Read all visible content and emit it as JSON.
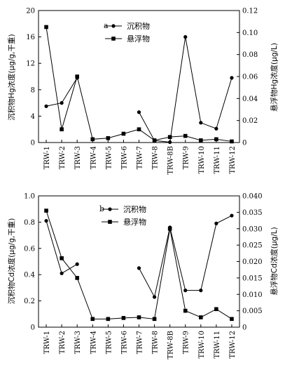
{
  "chart_data": [
    {
      "type": "line",
      "panel_label": "a",
      "categories": [
        "TRW-1",
        "TRW-2",
        "TRW-3",
        "TRW-4",
        "TRW-5",
        "TRW-6",
        "TRW-7",
        "TRW-8",
        "TRW-8B",
        "TRW-9",
        "TRW-10",
        "TRW-11",
        "TRW-12"
      ],
      "ylabel": "沉积物Hg浓度(μg/g,干重)",
      "y2label": "悬浮物Hg浓度(μg/L)",
      "ylim": [
        0,
        20
      ],
      "yticks": [
        "0",
        "4",
        "8",
        "12",
        "16",
        "20"
      ],
      "y2lim": [
        0,
        0.12
      ],
      "y2ticks": [
        "0",
        "0.02",
        "0.04",
        "0.06",
        "0.08",
        "0.10",
        "0.12"
      ],
      "legend_position": "top-center",
      "series": [
        {
          "name": "沉积物",
          "marker": "circle",
          "axis": "left",
          "values": [
            5.5,
            6.0,
            9.8,
            null,
            null,
            null,
            4.6,
            0.3,
            0.05,
            16.0,
            3.0,
            2.1,
            9.8
          ]
        },
        {
          "name": "悬浮物",
          "marker": "square",
          "axis": "right",
          "values": [
            0.105,
            0.012,
            0.06,
            0.003,
            0.004,
            0.008,
            0.012,
            0.002,
            0.005,
            0.006,
            0.002,
            0.003,
            0.001
          ]
        }
      ]
    },
    {
      "type": "line",
      "panel_label": "b",
      "categories": [
        "TRW-1",
        "TRW-2",
        "TRW-3",
        "TRW-4",
        "TRW-5",
        "TRW-6",
        "TRW-7",
        "TRW-8",
        "TRW-8B",
        "TRW-9",
        "TRW-10",
        "TRW-11",
        "TRW-12"
      ],
      "ylabel": "沉积物Cd浓度(μg/g,干重)",
      "y2label": "悬浮物Cd浓度(μg/L)",
      "ylim": [
        0,
        1.0
      ],
      "yticks": [
        "0",
        "0.2",
        "0.4",
        "0.6",
        "0.8",
        "1.0"
      ],
      "y2lim": [
        0,
        0.04
      ],
      "y2ticks": [
        "0",
        "0.005",
        "0.010",
        "0.015",
        "0.020",
        "0.025",
        "0.030",
        "0.035",
        "0.040"
      ],
      "legend_position": "top-center",
      "series": [
        {
          "name": "沉积物",
          "marker": "circle",
          "axis": "left",
          "values": [
            0.81,
            0.41,
            0.48,
            null,
            null,
            null,
            0.45,
            0.23,
            0.76,
            0.28,
            0.28,
            0.79,
            0.85
          ]
        },
        {
          "name": "悬浮物",
          "marker": "square",
          "axis": "right",
          "values": [
            0.0355,
            0.021,
            0.015,
            0.0025,
            0.0025,
            0.0028,
            0.003,
            0.0025,
            0.03,
            0.005,
            0.003,
            0.0055,
            0.0025
          ]
        }
      ]
    }
  ]
}
